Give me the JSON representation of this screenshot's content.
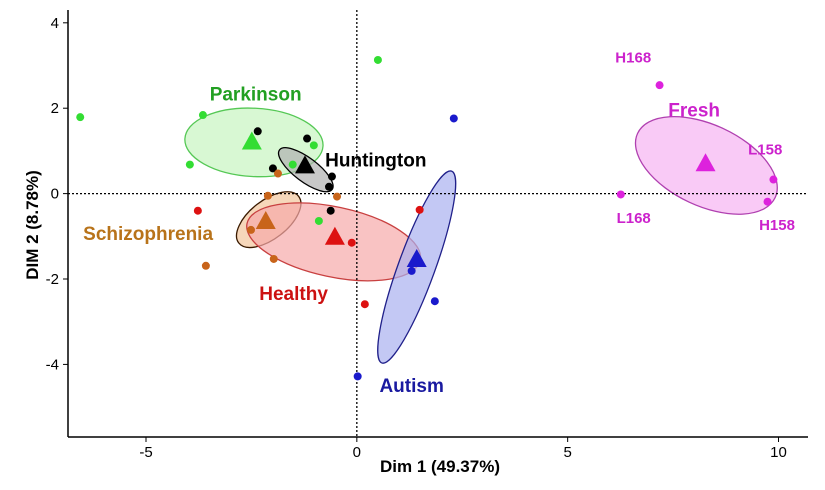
{
  "chart_data": {
    "type": "scatter",
    "title": "",
    "xlabel": "Dim 1 (49.37%)",
    "ylabel": "DIM 2 (8.78%)",
    "xlim": [
      -6.85,
      10.7
    ],
    "ylim": [
      -5.7,
      4.3
    ],
    "xticks": [
      -5,
      0,
      5,
      10
    ],
    "yticks": [
      4,
      2,
      0,
      -2,
      -4
    ],
    "reference_lines": {
      "x": 0,
      "y": 0,
      "style": "dotted"
    },
    "grid": false,
    "groups": [
      {
        "name": "Parkinson",
        "color": "#33dd33",
        "label_color": "#22a022",
        "points": [
          [
            -6.56,
            1.79
          ],
          [
            -3.65,
            1.84
          ],
          [
            -3.96,
            0.68
          ],
          [
            -1.02,
            1.13
          ],
          [
            -1.52,
            0.68
          ],
          [
            -0.9,
            -0.64
          ],
          [
            0.5,
            3.13
          ]
        ],
        "centroid": [
          -2.49,
          1.22
        ],
        "ellipse": {
          "center": [
            -2.44,
            1.2
          ],
          "semi_major": 1.64,
          "semi_minor": 0.8,
          "rotation_deg": 3
        }
      },
      {
        "name": "Huntington",
        "color": "#000000",
        "label_color": "#000000",
        "points": [
          [
            -2.35,
            1.46
          ],
          [
            -1.18,
            1.29
          ],
          [
            -1.99,
            0.59
          ],
          [
            -0.59,
            0.4
          ],
          [
            -0.66,
            0.16
          ],
          [
            -0.62,
            -0.4
          ]
        ],
        "centroid": [
          -1.23,
          0.66
        ],
        "ellipse": {
          "center": [
            -1.21,
            0.56
          ],
          "semi_major": 0.78,
          "semi_minor": 0.28,
          "rotation_deg": 37
        }
      },
      {
        "name": "Schizophrenia",
        "color": "#c8641a",
        "label_color": "#b8731a",
        "points": [
          [
            -1.87,
            0.47
          ],
          [
            -2.11,
            -0.05
          ],
          [
            -0.47,
            -0.07
          ],
          [
            -2.51,
            -0.85
          ],
          [
            -1.97,
            -1.53
          ],
          [
            -3.58,
            -1.69
          ]
        ],
        "centroid": [
          -2.16,
          -0.64
        ],
        "ellipse": {
          "center": [
            -2.09,
            -0.61
          ],
          "semi_major": 0.9,
          "semi_minor": 0.45,
          "rotation_deg": -38
        }
      },
      {
        "name": "Healthy",
        "color": "#dd1111",
        "label_color": "#cc1111",
        "points": [
          [
            -3.77,
            -0.4
          ],
          [
            -0.12,
            -1.15
          ],
          [
            1.49,
            -0.38
          ],
          [
            0.19,
            -2.59
          ]
        ],
        "centroid": [
          -0.52,
          -1.01
        ],
        "ellipse": {
          "center": [
            -0.55,
            -1.13
          ],
          "semi_major": 2.1,
          "semi_minor": 0.82,
          "rotation_deg": 12
        }
      },
      {
        "name": "Autism",
        "color": "#1a1acc",
        "label_color": "#1a1aa0",
        "points": [
          [
            2.3,
            1.76
          ],
          [
            1.3,
            -1.81
          ],
          [
            1.85,
            -2.52
          ],
          [
            0.02,
            -4.28
          ]
        ],
        "centroid": [
          1.42,
          -1.53
        ],
        "ellipse": {
          "center": [
            1.42,
            -1.72
          ],
          "semi_major": 2.42,
          "semi_minor": 0.43,
          "rotation_deg": -70
        }
      },
      {
        "name": "Fresh",
        "color": "#dd22dd",
        "label_color": "#cc22cc",
        "points": [
          [
            7.18,
            2.54
          ],
          [
            6.26,
            -0.02
          ],
          [
            9.88,
            0.33
          ],
          [
            9.74,
            -0.19
          ]
        ],
        "point_labels": [
          "H168",
          "L168",
          "L158",
          "H158"
        ],
        "centroid": [
          8.27,
          0.71
        ],
        "ellipse": {
          "center": [
            8.29,
            0.66
          ],
          "semi_major": 1.8,
          "semi_minor": 0.95,
          "rotation_deg": 25
        }
      }
    ]
  }
}
